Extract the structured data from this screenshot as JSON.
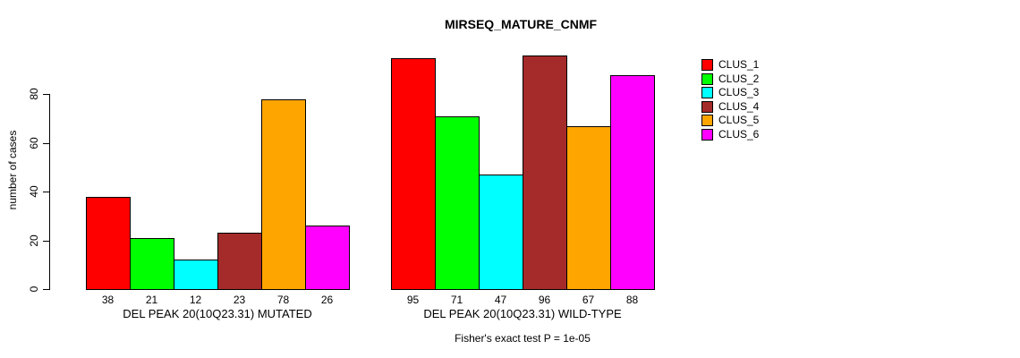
{
  "title": "MIRSEQ_MATURE_CNMF",
  "caption": "Fisher's exact test P = 1e-05",
  "chart_data": {
    "type": "bar",
    "title": "MIRSEQ_MATURE_CNMF",
    "ylabel": "number of cases",
    "xlabel": "",
    "yticks": [
      0,
      20,
      40,
      60,
      80
    ],
    "ylim": [
      0,
      96
    ],
    "grid": false,
    "legend_position": "right",
    "series_names": [
      "CLUS_1",
      "CLUS_2",
      "CLUS_3",
      "CLUS_4",
      "CLUS_5",
      "CLUS_6"
    ],
    "colors": [
      "#FF0000",
      "#00FF00",
      "#00FFFF",
      "#A52A2A",
      "#FFA500",
      "#FF00FF"
    ],
    "groups": [
      {
        "label": "DEL PEAK 20(10Q23.31) MUTATED",
        "values": [
          38,
          21,
          12,
          23,
          78,
          26
        ]
      },
      {
        "label": "DEL PEAK 20(10Q23.31) WILD-TYPE",
        "values": [
          95,
          71,
          47,
          96,
          67,
          88
        ]
      }
    ],
    "annotation": "Fisher's exact test P = 1e-05"
  }
}
